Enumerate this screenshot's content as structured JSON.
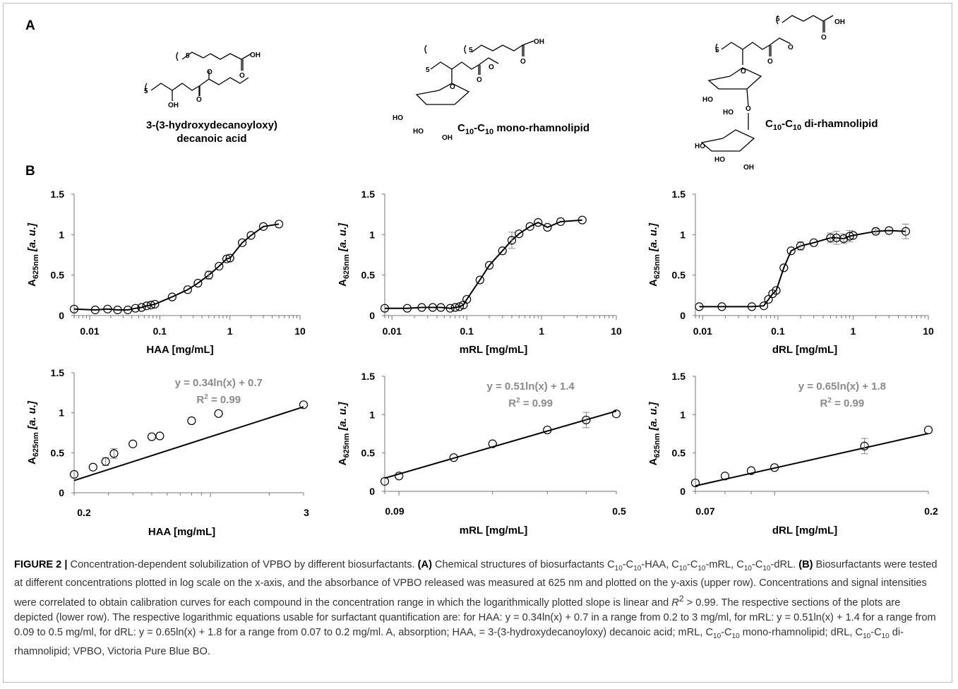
{
  "panel_a_letter": "A",
  "panel_b_letter": "B",
  "structures": {
    "haa": {
      "line1": "3-(3-hydroxydecanoyloxy)",
      "line2": "decanoic acid"
    },
    "mrl": {
      "prefix": "C",
      "sub1": "10",
      "mid": "-C",
      "sub2": "10",
      "suffix": " mono-rhamnolipid"
    },
    "drl": {
      "prefix": "C",
      "sub1": "10",
      "mid": "-C",
      "sub2": "10",
      "suffix": " di-rhamnolipid"
    },
    "atom_oh": "OH",
    "atom_ho": "HO",
    "atom_o": "O",
    "subscript_five": "5"
  },
  "chart_data": [
    {
      "type": "scatter",
      "name": "HAA full",
      "xlabel": "HAA [mg/mL]",
      "ylabel_main": "A",
      "ylabel_sub": "625nm",
      "ylabel_unit": " [a. u.]",
      "xscale": "log",
      "xlim": [
        0.006,
        10
      ],
      "ylim": [
        0,
        1.5
      ],
      "xticks": [
        0.01,
        0.1,
        1,
        10
      ],
      "xtick_labels": [
        "0.01",
        "0.1",
        "1",
        "10"
      ],
      "yticks": [
        0,
        0.5,
        1,
        1.5
      ],
      "ytick_labels": [
        "0",
        "0.5",
        "1",
        "1.5"
      ],
      "x": [
        0.006,
        0.012,
        0.018,
        0.025,
        0.035,
        0.045,
        0.055,
        0.065,
        0.075,
        0.085,
        0.15,
        0.25,
        0.35,
        0.5,
        0.7,
        0.9,
        1.0,
        1.5,
        2.0,
        3.0,
        5.0
      ],
      "y": [
        0.08,
        0.07,
        0.08,
        0.07,
        0.07,
        0.09,
        0.1,
        0.12,
        0.13,
        0.14,
        0.23,
        0.32,
        0.4,
        0.5,
        0.61,
        0.7,
        0.71,
        0.9,
        0.99,
        1.1,
        1.13
      ],
      "yerr": [
        0,
        0,
        0,
        0,
        0,
        0,
        0,
        0,
        0,
        0,
        0,
        0,
        0,
        0.05,
        0,
        0,
        0,
        0,
        0,
        0,
        0
      ]
    },
    {
      "type": "scatter",
      "name": "mRL full",
      "xlabel": "mRL [mg/mL]",
      "ylabel_main": "A",
      "ylabel_sub": "625nm",
      "ylabel_unit": " [a. u.]",
      "xscale": "log",
      "xlim": [
        0.008,
        10
      ],
      "ylim": [
        0,
        1.5
      ],
      "xticks": [
        0.01,
        0.1,
        1,
        10
      ],
      "xtick_labels": [
        "0.01",
        "0.1",
        "1",
        "10"
      ],
      "yticks": [
        0,
        0.5,
        1,
        1.5
      ],
      "ytick_labels": [
        "0",
        "0.5",
        "1",
        "1.5"
      ],
      "x": [
        0.008,
        0.016,
        0.025,
        0.035,
        0.045,
        0.06,
        0.07,
        0.08,
        0.09,
        0.1,
        0.15,
        0.2,
        0.3,
        0.4,
        0.5,
        0.7,
        0.9,
        1.2,
        1.8,
        3.5
      ],
      "y": [
        0.09,
        0.09,
        0.1,
        0.1,
        0.1,
        0.09,
        0.1,
        0.11,
        0.13,
        0.2,
        0.44,
        0.62,
        0.8,
        0.93,
        1.01,
        1.1,
        1.15,
        1.09,
        1.16,
        1.18
      ],
      "yerr": [
        0,
        0,
        0,
        0,
        0,
        0,
        0,
        0,
        0,
        0,
        0,
        0,
        0,
        0.1,
        0,
        0,
        0,
        0,
        0,
        0
      ]
    },
    {
      "type": "scatter",
      "name": "dRL full",
      "xlabel": "dRL [mg/mL]",
      "ylabel_main": "A",
      "ylabel_sub": "625nm",
      "ylabel_unit": " [a. u.]",
      "xscale": "log",
      "xlim": [
        0.008,
        10
      ],
      "ylim": [
        0,
        1.5
      ],
      "xticks": [
        0.01,
        0.1,
        1,
        10
      ],
      "xtick_labels": [
        "0.01",
        "0.1",
        "1",
        "10"
      ],
      "yticks": [
        0,
        0.5,
        1,
        1.5
      ],
      "ytick_labels": [
        "0",
        "0.5",
        "1",
        "1.5"
      ],
      "x": [
        0.009,
        0.018,
        0.045,
        0.065,
        0.075,
        0.085,
        0.095,
        0.12,
        0.15,
        0.2,
        0.3,
        0.5,
        0.6,
        0.75,
        0.9,
        1.0,
        2.0,
        3.0,
        5.0
      ],
      "y": [
        0.11,
        0.11,
        0.11,
        0.12,
        0.2,
        0.27,
        0.31,
        0.59,
        0.8,
        0.86,
        0.9,
        0.96,
        0.96,
        0.95,
        0.98,
        0.99,
        1.04,
        1.05,
        1.04
      ],
      "yerr": [
        0,
        0,
        0,
        0,
        0,
        0,
        0,
        0,
        0,
        0.05,
        0,
        0.06,
        0.08,
        0.06,
        0.07,
        0,
        0.03,
        0,
        0.09
      ]
    },
    {
      "type": "scatter",
      "name": "HAA linear range",
      "xlabel": "HAA [mg/mL]",
      "ylabel_main": "A",
      "ylabel_sub": "625nm",
      "ylabel_unit": " [a. u.]",
      "xscale": "log",
      "xlim": [
        0.2,
        3
      ],
      "ylim": [
        0,
        1.5
      ],
      "xtick_labels": [
        "0.2",
        "3"
      ],
      "yticks": [
        0,
        0.5,
        1,
        1.5
      ],
      "ytick_labels": [
        "0",
        "0.5",
        "1",
        "1.5"
      ],
      "x": [
        0.2,
        0.25,
        0.29,
        0.32,
        0.4,
        0.5,
        0.55,
        0.8,
        1.1,
        3.0
      ],
      "y": [
        0.23,
        0.32,
        0.39,
        0.49,
        0.61,
        0.7,
        0.71,
        0.9,
        0.99,
        1.1
      ],
      "yerr": [
        0,
        0,
        0.05,
        0.06,
        0,
        0,
        0,
        0,
        0,
        0
      ],
      "fit": {
        "slope": 0.34,
        "intercept": 0.7
      },
      "equation": "y = 0.34ln(x) + 0.7",
      "r2_main": "R",
      "r2_sup": "2",
      "r2_value": " = 0.99"
    },
    {
      "type": "scatter",
      "name": "mRL linear range",
      "xlabel": "mRL [mg/mL]",
      "ylabel_main": "A",
      "ylabel_sub": "625nm",
      "ylabel_unit": " [a. u.]",
      "xscale": "log",
      "xlim": [
        0.09,
        0.5
      ],
      "ylim": [
        0,
        1.5
      ],
      "xtick_labels": [
        "0.09",
        "0.5"
      ],
      "yticks": [
        0,
        0.5,
        1,
        1.5
      ],
      "ytick_labels": [
        "0",
        "0.5",
        "1",
        "1.5"
      ],
      "x": [
        0.09,
        0.1,
        0.15,
        0.2,
        0.3,
        0.4,
        0.5
      ],
      "y": [
        0.13,
        0.2,
        0.44,
        0.62,
        0.8,
        0.93,
        1.01
      ],
      "yerr": [
        0,
        0,
        0,
        0,
        0,
        0.1,
        0
      ],
      "fit": {
        "slope": 0.51,
        "intercept": 1.4
      },
      "equation": "y = 0.51ln(x) + 1.4",
      "r2_main": "R",
      "r2_sup": "2",
      "r2_value": " = 0.99"
    },
    {
      "type": "scatter",
      "name": "dRL linear range",
      "xlabel": "dRL [mg/mL]",
      "ylabel_main": "A",
      "ylabel_sub": "625nm",
      "ylabel_unit": " [a. u.]",
      "xscale": "log",
      "xlim": [
        0.07,
        0.2
      ],
      "ylim": [
        0,
        1.5
      ],
      "xtick_labels": [
        "0.07",
        "0.2"
      ],
      "yticks": [
        0,
        0.5,
        1,
        1.5
      ],
      "ytick_labels": [
        "0",
        "0.5",
        "1",
        "1.5"
      ],
      "x": [
        0.07,
        0.08,
        0.09,
        0.1,
        0.15,
        0.2
      ],
      "y": [
        0.11,
        0.2,
        0.27,
        0.31,
        0.59,
        0.8
      ],
      "yerr": [
        0,
        0,
        0,
        0,
        0.1,
        0
      ],
      "fit": {
        "slope": 0.65,
        "intercept": 1.8
      },
      "equation": "y = 0.65ln(x) + 1.8",
      "r2_main": "R",
      "r2_sup": "2",
      "r2_value": " = 0.99"
    }
  ],
  "caption": {
    "figure_label": "FIGURE 2 |",
    "t1": " Concentration-dependent solubilization of VPBO by different biosurfactants. ",
    "a_label": "(A)",
    "t2": " Chemical structures of biosurfactants C",
    "s1": "10",
    "t3": "-C",
    "s2": "10",
    "t4": "-HAA, C",
    "s3": "10",
    "t5": "-C",
    "s4": "10",
    "t6": "-mRL, C",
    "s5": "10",
    "t7": "-C",
    "s6": "10",
    "t8": "-dRL. ",
    "b_label": "(B)",
    "t9": " Biosurfactants were tested at different concentrations plotted in log scale on the x-axis, and the absorbance of VPBO released was measured at 625 nm and plotted on the y-axis (upper row). Concentrations and signal intensities were correlated to obtain calibration curves for each compound in the concentration range in which the logarithmically plotted slope is linear and ",
    "r": "R",
    "r_sup": "2",
    "t10": " > 0.99. The respective sections of the plots are depicted (lower row). The respective logarithmic equations usable for surfactant quantification are: for HAA: y = 0.34ln(x) + 0.7 in a range from 0.2 to 3 mg/ml, for mRL: y = 0.51ln(x) + 1.4 for a range from 0.09 to 0.5 mg/ml, for dRL: y = 0.65ln(x) + 1.8 for a range from 0.07 to 0.2 mg/ml. A, absorption; HAA, = 3-(3-hydroxydecanoyloxy) decanoic acid; mRL, C",
    "s7": "10",
    "t11": "-C",
    "s8": "10",
    "t12": " mono-rhamnolipid; dRL, C",
    "s9": "10",
    "t13": "-C",
    "s10": "10",
    "t14": " di-rhamnolipid; VPBO, Victoria Pure Blue BO."
  }
}
